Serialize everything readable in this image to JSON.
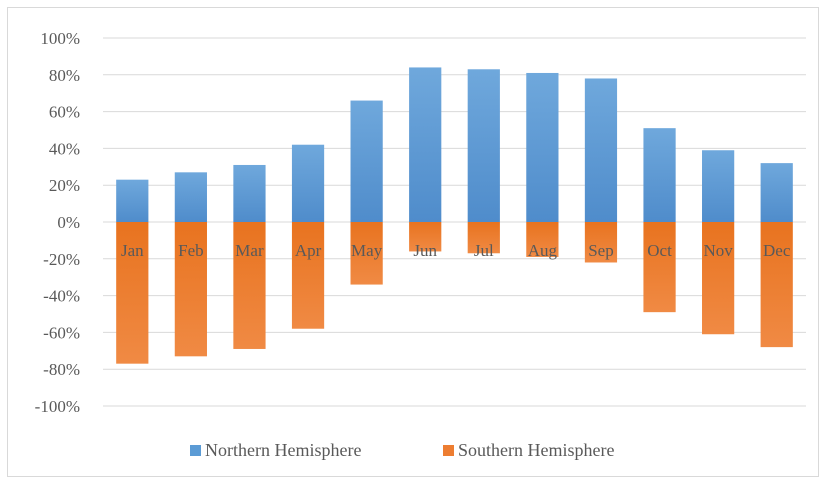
{
  "chart_data": {
    "type": "bar",
    "stacked": true,
    "categories": [
      "Jan",
      "Feb",
      "Mar",
      "Apr",
      "May",
      "Jun",
      "Jul",
      "Aug",
      "Sep",
      "Oct",
      "Nov",
      "Dec"
    ],
    "series": [
      {
        "name": "Northern Hemisphere",
        "color": "#5b9bd5",
        "values": [
          23,
          27,
          31,
          42,
          66,
          84,
          83,
          81,
          78,
          51,
          39,
          32
        ]
      },
      {
        "name": "Southern Hemisphere",
        "color": "#ed7d31",
        "values": [
          -77,
          -73,
          -69,
          -58,
          -34,
          -16,
          -17,
          -19,
          -22,
          -49,
          -61,
          -68
        ]
      }
    ],
    "ylim": [
      -100,
      100
    ],
    "yticks": [
      100,
      80,
      60,
      40,
      20,
      0,
      -20,
      -40,
      -60,
      -80,
      -100
    ],
    "ytick_labels": [
      "100%",
      "80%",
      "60%",
      "40%",
      "20%",
      "0%",
      "-20%",
      "-40%",
      "-60%",
      "-80%",
      "-100%"
    ],
    "grid": true,
    "legend_position": "bottom",
    "title": "",
    "xlabel": "",
    "ylabel": ""
  }
}
